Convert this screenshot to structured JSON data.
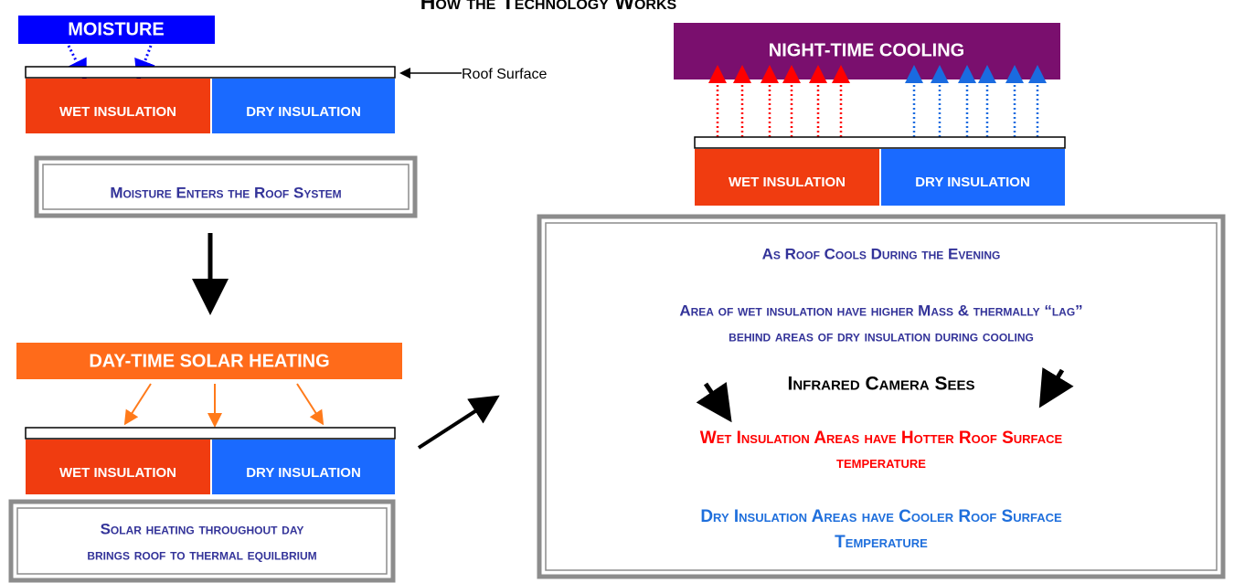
{
  "title": "How the Technology Works",
  "moisture": {
    "label": "MOISTURE",
    "roof": {
      "wet": "WET INSULATION",
      "dry": "DRY INSULATION"
    },
    "roof_surface": "Roof Surface",
    "caption": "Moisture Enters the Roof System"
  },
  "day": {
    "label": "DAY-TIME SOLAR HEATING",
    "roof": {
      "wet": "WET INSULATION",
      "dry": "DRY INSULATION"
    },
    "caption": [
      "Solar heating throughout day",
      "brings roof to thermal equilbrium"
    ]
  },
  "night": {
    "label": "NIGHT-TIME COOLING",
    "roof": {
      "wet": "WET INSULATION",
      "dry": "DRY INSULATION"
    }
  },
  "explanation": {
    "heading": "As Roof Cools During the Evening",
    "mass": [
      "Area of wet insulation have higher Mass & thermally “lag”",
      "behind areas of dry insulation during cooling"
    ],
    "camera": "Infrared Camera Sees",
    "wet": [
      "Wet Insulation Areas have Hotter Roof Surface",
      "temperature"
    ],
    "dry": [
      "Dry Insulation Areas have Cooler Roof Surface",
      "Temperature"
    ]
  }
}
